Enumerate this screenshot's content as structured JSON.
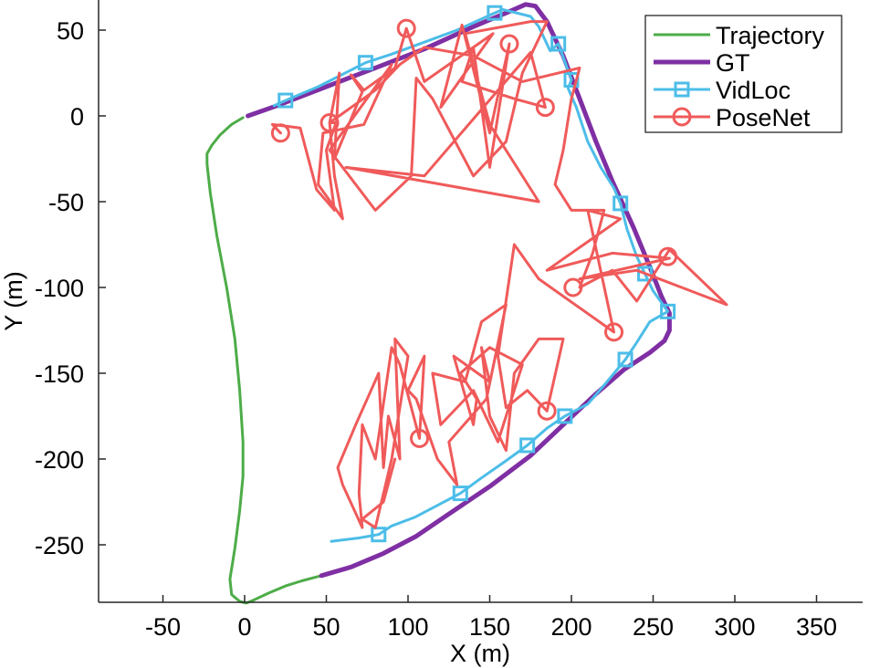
{
  "chart_data": {
    "type": "line",
    "xlabel": "X (m)",
    "ylabel": "Y (m)",
    "xlim": [
      -85,
      360
    ],
    "ylim": [
      -284,
      70
    ],
    "xticks": [
      -50,
      0,
      50,
      100,
      150,
      200,
      250,
      300,
      350
    ],
    "yticks": [
      50,
      0,
      -50,
      -100,
      -150,
      -200,
      -250
    ],
    "grid": false,
    "legend_position": "top-right",
    "series": [
      {
        "name": "Trajectory",
        "color": "#4DAC48",
        "marker": "none",
        "points": [
          [
            -1,
            -1
          ],
          [
            -8,
            -5
          ],
          [
            -15,
            -11
          ],
          [
            -20,
            -17
          ],
          [
            -23,
            -22
          ],
          [
            -23,
            -28
          ],
          [
            -21,
            -45
          ],
          [
            -17,
            -70
          ],
          [
            -11,
            -100
          ],
          [
            -6,
            -130
          ],
          [
            -3,
            -160
          ],
          [
            -1,
            -190
          ],
          [
            -1,
            -210
          ],
          [
            -3,
            -230
          ],
          [
            -6,
            -252
          ],
          [
            -9,
            -270
          ],
          [
            -8,
            -279
          ],
          [
            -3,
            -283
          ],
          [
            1,
            -284
          ],
          [
            6,
            -282
          ],
          [
            15,
            -278
          ],
          [
            25,
            -274
          ],
          [
            35,
            -271
          ],
          [
            47,
            -268
          ]
        ]
      },
      {
        "name": "GT",
        "color": "#7F2FA3",
        "marker": "none",
        "points": [
          [
            2,
            0
          ],
          [
            20,
            6
          ],
          [
            50,
            17
          ],
          [
            80,
            28
          ],
          [
            110,
            39
          ],
          [
            140,
            52
          ],
          [
            160,
            60
          ],
          [
            172,
            65
          ],
          [
            178,
            64
          ],
          [
            185,
            55
          ],
          [
            195,
            35
          ],
          [
            205,
            10
          ],
          [
            215,
            -15
          ],
          [
            225,
            -38
          ],
          [
            238,
            -65
          ],
          [
            248,
            -88
          ],
          [
            255,
            -105
          ],
          [
            260,
            -115
          ],
          [
            260,
            -125
          ],
          [
            257,
            -131
          ],
          [
            248,
            -138
          ],
          [
            232,
            -148
          ],
          [
            215,
            -162
          ],
          [
            195,
            -180
          ],
          [
            175,
            -198
          ],
          [
            150,
            -216
          ],
          [
            125,
            -232
          ],
          [
            105,
            -245
          ],
          [
            85,
            -255
          ],
          [
            65,
            -263
          ],
          [
            47,
            -268
          ]
        ]
      },
      {
        "name": "VidLoc",
        "color": "#4CBDE8",
        "marker": "square",
        "marker_points": [
          [
            25,
            9
          ],
          [
            74,
            31
          ],
          [
            153,
            60
          ],
          [
            192,
            42
          ],
          [
            200,
            21
          ],
          [
            230,
            -51
          ],
          [
            245,
            -92
          ],
          [
            259,
            -114
          ],
          [
            233,
            -142
          ],
          [
            196,
            -175
          ],
          [
            173,
            -192
          ],
          [
            132,
            -220
          ],
          [
            82,
            -244
          ]
        ],
        "points": [
          [
            18,
            6
          ],
          [
            25,
            9
          ],
          [
            45,
            17
          ],
          [
            74,
            31
          ],
          [
            90,
            36
          ],
          [
            110,
            43
          ],
          [
            130,
            50
          ],
          [
            153,
            60
          ],
          [
            158,
            62
          ],
          [
            175,
            58
          ],
          [
            180,
            52
          ],
          [
            187,
            38
          ],
          [
            192,
            42
          ],
          [
            200,
            21
          ],
          [
            198,
            16
          ],
          [
            203,
            5
          ],
          [
            210,
            -15
          ],
          [
            218,
            -30
          ],
          [
            226,
            -42
          ],
          [
            230,
            -51
          ],
          [
            234,
            -66
          ],
          [
            240,
            -82
          ],
          [
            245,
            -92
          ],
          [
            250,
            -102
          ],
          [
            256,
            -110
          ],
          [
            259,
            -114
          ],
          [
            248,
            -120
          ],
          [
            240,
            -132
          ],
          [
            233,
            -142
          ],
          [
            220,
            -157
          ],
          [
            210,
            -168
          ],
          [
            196,
            -175
          ],
          [
            185,
            -182
          ],
          [
            173,
            -192
          ],
          [
            160,
            -201
          ],
          [
            145,
            -211
          ],
          [
            132,
            -220
          ],
          [
            118,
            -227
          ],
          [
            104,
            -234
          ],
          [
            90,
            -239
          ],
          [
            82,
            -244
          ],
          [
            70,
            -246
          ],
          [
            53,
            -248
          ]
        ]
      },
      {
        "name": "PoseNet",
        "color": "#F05A5A",
        "marker": "circle",
        "marker_points": [
          [
            99,
            51
          ],
          [
            162,
            42
          ],
          [
            184,
            5
          ],
          [
            52,
            -4
          ],
          [
            22,
            -10
          ],
          [
            201,
            -100
          ],
          [
            259,
            -82
          ],
          [
            226,
            -126
          ],
          [
            185,
            -172
          ],
          [
            107,
            -188
          ]
        ],
        "points": [
          [
            22,
            -10
          ],
          [
            17,
            -5
          ],
          [
            34,
            -7
          ],
          [
            44,
            -43
          ],
          [
            55,
            -55
          ],
          [
            50,
            -20
          ],
          [
            56,
            -4
          ],
          [
            52,
            -4
          ],
          [
            58,
            25
          ],
          [
            55,
            -25
          ],
          [
            72,
            14
          ],
          [
            65,
            24
          ],
          [
            73,
            15
          ],
          [
            92,
            28
          ],
          [
            99,
            51
          ],
          [
            110,
            20
          ],
          [
            152,
            48
          ],
          [
            120,
            5
          ],
          [
            133,
            53
          ],
          [
            150,
            -10
          ],
          [
            162,
            42
          ],
          [
            150,
            -30
          ],
          [
            140,
            40
          ],
          [
            133,
            20
          ],
          [
            165,
            10
          ],
          [
            184,
            5
          ],
          [
            175,
            37
          ],
          [
            110,
            -35
          ],
          [
            62,
            -30
          ],
          [
            180,
            -50
          ],
          [
            150,
            -5
          ],
          [
            135,
            48
          ],
          [
            175,
            55
          ],
          [
            185,
            55
          ],
          [
            170,
            25
          ],
          [
            160,
            -15
          ],
          [
            140,
            -35
          ],
          [
            115,
            10
          ],
          [
            105,
            22
          ],
          [
            102,
            -35
          ],
          [
            80,
            -55
          ],
          [
            52,
            -20
          ],
          [
            90,
            30
          ],
          [
            73,
            -5
          ],
          [
            48,
            -10
          ],
          [
            45,
            -40
          ],
          [
            60,
            -60
          ],
          [
            55,
            -35
          ],
          [
            52,
            -4
          ],
          [
            80,
            15
          ],
          [
            95,
            30
          ],
          [
            110,
            40
          ],
          [
            140,
            35
          ],
          [
            170,
            20
          ],
          [
            205,
            28
          ],
          [
            200,
            10
          ],
          [
            195,
            -20
          ],
          [
            190,
            -40
          ],
          [
            200,
            -55
          ],
          [
            220,
            -55
          ],
          [
            213,
            -80
          ],
          [
            205,
            -100
          ],
          [
            225,
            -90
          ],
          [
            240,
            -108
          ],
          [
            260,
            -78
          ],
          [
            295,
            -110
          ],
          [
            240,
            -90
          ],
          [
            205,
            -95
          ],
          [
            260,
            -83
          ],
          [
            225,
            -80
          ],
          [
            185,
            -90
          ],
          [
            215,
            -70
          ],
          [
            230,
            -60
          ],
          [
            210,
            -55
          ],
          [
            226,
            -126
          ],
          [
            180,
            -95
          ],
          [
            165,
            -75
          ],
          [
            155,
            -140
          ],
          [
            160,
            -170
          ],
          [
            173,
            -160
          ],
          [
            185,
            -172
          ],
          [
            195,
            -130
          ],
          [
            180,
            -130
          ],
          [
            165,
            -150
          ],
          [
            160,
            -195
          ],
          [
            150,
            -175
          ],
          [
            145,
            -135
          ],
          [
            150,
            -155
          ],
          [
            128,
            -140
          ],
          [
            140,
            -180
          ],
          [
            142,
            -165
          ],
          [
            132,
            -150
          ],
          [
            150,
            -135
          ],
          [
            170,
            -145
          ],
          [
            155,
            -190
          ],
          [
            140,
            -160
          ],
          [
            120,
            -180
          ],
          [
            115,
            -150
          ],
          [
            135,
            -155
          ],
          [
            145,
            -120
          ],
          [
            160,
            -110
          ],
          [
            148,
            -165
          ],
          [
            125,
            -190
          ],
          [
            130,
            -215
          ],
          [
            118,
            -200
          ],
          [
            105,
            -165
          ],
          [
            100,
            -160
          ],
          [
            110,
            -140
          ],
          [
            107,
            -188
          ],
          [
            102,
            -170
          ],
          [
            95,
            -145
          ],
          [
            90,
            -135
          ],
          [
            80,
            -200
          ],
          [
            72,
            -180
          ],
          [
            70,
            -220
          ],
          [
            72,
            -240
          ],
          [
            60,
            -215
          ],
          [
            57,
            -205
          ],
          [
            68,
            -180
          ],
          [
            75,
            -165
          ],
          [
            82,
            -150
          ],
          [
            85,
            -205
          ],
          [
            88,
            -175
          ],
          [
            95,
            -200
          ],
          [
            92,
            -130
          ],
          [
            100,
            -140
          ],
          [
            90,
            -200
          ],
          [
            80,
            -240
          ],
          [
            72,
            -235
          ],
          [
            85,
            -225
          ],
          [
            92,
            -200
          ]
        ]
      }
    ]
  }
}
